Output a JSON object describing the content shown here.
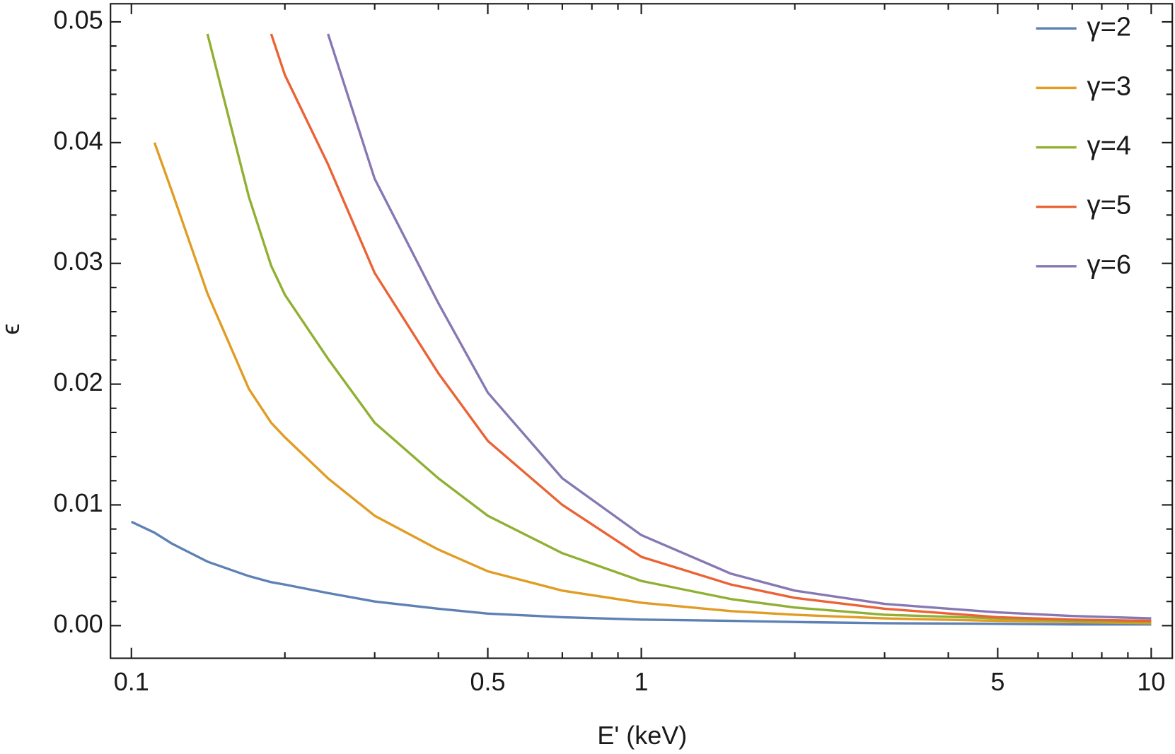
{
  "chart_data": {
    "type": "line",
    "x_label": "E' (keV)",
    "y_label": "ϵ",
    "x": [
      0.1,
      0.111,
      0.12,
      0.141,
      0.17,
      0.188,
      0.2,
      0.243,
      0.3,
      0.4,
      0.5,
      0.7,
      1,
      1.5,
      2,
      3,
      5,
      7,
      10
    ],
    "series": [
      {
        "name": "γ=2",
        "color": "#5e81b5",
        "values": [
          0.0086,
          0.0077,
          0.0068,
          0.0053,
          0.0041,
          0.0036,
          0.0034,
          0.0027,
          0.002,
          0.0014,
          0.001,
          0.0007,
          0.0005,
          0.0004,
          0.0003,
          0.0002,
          0.00015,
          0.0001,
          0.0001
        ]
      },
      {
        "name": "γ=3",
        "color": "#e19c24",
        "values": [
          null,
          0.04,
          0.036,
          0.0275,
          0.0196,
          0.0168,
          0.0156,
          0.0122,
          0.0091,
          0.0063,
          0.0045,
          0.0029,
          0.0019,
          0.0012,
          0.0009,
          0.0006,
          0.0004,
          0.0003,
          0.0002
        ]
      },
      {
        "name": "γ=4",
        "color": "#8fb032",
        "values": [
          null,
          null,
          null,
          0.049,
          0.0355,
          0.0298,
          0.0274,
          0.0221,
          0.0168,
          0.0122,
          0.0091,
          0.006,
          0.0037,
          0.0022,
          0.0015,
          0.0009,
          0.0006,
          0.0004,
          0.0003
        ]
      },
      {
        "name": "γ=5",
        "color": "#eb6235",
        "values": [
          null,
          null,
          null,
          null,
          null,
          0.049,
          0.0456,
          0.0382,
          0.0292,
          0.0209,
          0.0153,
          0.01,
          0.0057,
          0.0034,
          0.0023,
          0.0014,
          0.0007,
          0.0005,
          0.0004
        ]
      },
      {
        "name": "γ=6",
        "color": "#8778b3",
        "values": [
          null,
          null,
          null,
          null,
          null,
          null,
          null,
          0.049,
          0.037,
          0.0267,
          0.0193,
          0.0122,
          0.0075,
          0.0043,
          0.0029,
          0.0018,
          0.0011,
          0.0008,
          0.0006
        ]
      }
    ],
    "xscale": "log",
    "xlim": [
      0.091,
      11
    ],
    "ylim": [
      -0.0027,
      0.0515
    ],
    "xticks": [
      0.1,
      0.5,
      1,
      5,
      10
    ],
    "xminorticks": [
      0.2,
      0.3,
      0.4,
      0.6,
      0.7,
      0.8,
      0.9,
      2,
      3,
      4,
      6,
      7,
      8,
      9
    ],
    "yticks": [
      {
        "value": 0,
        "label": "0.00"
      },
      {
        "value": 0.01,
        "label": "0.01"
      },
      {
        "value": 0.02,
        "label": "0.02"
      },
      {
        "value": 0.03,
        "label": "0.03"
      },
      {
        "value": 0.04,
        "label": "0.04"
      },
      {
        "value": 0.05,
        "label": "0.05"
      }
    ],
    "yminorticks": [
      0.002,
      0.004,
      0.006,
      0.008,
      0.012,
      0.014,
      0.016,
      0.018,
      0.022,
      0.024,
      0.026,
      0.028,
      0.032,
      0.034,
      0.036,
      0.038,
      0.042,
      0.044,
      0.046,
      0.048
    ],
    "legend": "top-right",
    "grid": false
  }
}
